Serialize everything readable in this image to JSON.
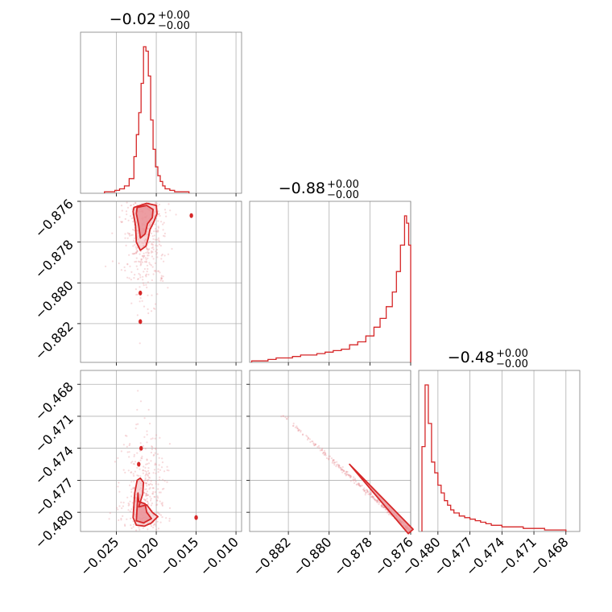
{
  "chart_data": {
    "type": "corner",
    "color": "#d62728",
    "panel_titles": [
      {
        "median": "−0.02",
        "plus": "+0.00",
        "minus": "−0.00"
      },
      {
        "median": "−0.88",
        "plus": "+0.00",
        "minus": "−0.00"
      },
      {
        "median": "−0.48",
        "plus": "+0.00",
        "minus": "−0.00"
      }
    ],
    "axes": [
      {
        "range": [
          -0.0295,
          -0.0093
        ],
        "ticks": [
          -0.025,
          -0.02,
          -0.015,
          -0.01
        ],
        "tick_labels": [
          "−0.025",
          "−0.020",
          "−0.015",
          "−0.010"
        ]
      },
      {
        "range": [
          -0.8839,
          -0.876
        ],
        "ticks": [
          -0.882,
          -0.88,
          -0.878,
          -0.876
        ],
        "tick_labels": [
          "−0.882",
          "−0.880",
          "−0.878",
          "−0.876"
        ]
      },
      {
        "range": [
          -0.4818,
          -0.4667
        ],
        "ticks": [
          -0.48,
          -0.477,
          -0.474,
          -0.471,
          -0.468
        ],
        "tick_labels": [
          "−0.480",
          "−0.477",
          "−0.474",
          "−0.471",
          "−0.468"
        ]
      }
    ],
    "grid": true,
    "histograms": [
      {
        "param": 0,
        "edges": [
          -0.0265,
          -0.0258,
          -0.0252,
          -0.0246,
          -0.024,
          -0.0234,
          -0.0228,
          -0.0225,
          -0.0222,
          -0.0219,
          -0.0216,
          -0.0213,
          -0.021,
          -0.0207,
          -0.0204,
          -0.0201,
          -0.0198,
          -0.0195,
          -0.0192,
          -0.0189,
          -0.0183,
          -0.0177,
          -0.0171,
          -0.0165,
          -0.0159
        ],
        "counts": [
          1,
          1,
          2,
          3,
          5,
          10,
          25,
          40,
          55,
          75,
          100,
          97,
          80,
          50,
          30,
          18,
          12,
          8,
          5,
          3,
          2,
          1,
          1,
          1
        ]
      },
      {
        "param": 1,
        "edges": [
          -0.8838,
          -0.8834,
          -0.883,
          -0.8826,
          -0.8822,
          -0.8818,
          -0.8814,
          -0.881,
          -0.8806,
          -0.8802,
          -0.8798,
          -0.8794,
          -0.879,
          -0.8786,
          -0.8782,
          -0.8778,
          -0.8775,
          -0.8772,
          -0.8769,
          -0.8767,
          -0.8765,
          -0.8763,
          -0.8762,
          -0.8761,
          -0.876
        ],
        "counts": [
          1,
          1,
          2,
          3,
          3,
          4,
          5,
          5,
          6,
          7,
          8,
          9,
          12,
          14,
          18,
          24,
          30,
          38,
          48,
          62,
          80,
          100,
          95,
          80
        ]
      },
      {
        "param": 2,
        "edges": [
          -0.4815,
          -0.4812,
          -0.4809,
          -0.4806,
          -0.4803,
          -0.48,
          -0.4797,
          -0.4794,
          -0.4791,
          -0.4788,
          -0.4785,
          -0.478,
          -0.4775,
          -0.477,
          -0.4765,
          -0.476,
          -0.4755,
          -0.475,
          -0.4745,
          -0.474,
          -0.473,
          -0.472,
          -0.471,
          -0.47,
          -0.468
        ],
        "counts": [
          55,
          95,
          70,
          45,
          38,
          30,
          25,
          20,
          17,
          14,
          12,
          10,
          9,
          8,
          7,
          6,
          5,
          4,
          4,
          3,
          3,
          2,
          2,
          1
        ]
      }
    ],
    "contour_panels": [
      {
        "x_param": 0,
        "y_param": 1,
        "outer": [
          [
            -0.0228,
            -0.8763
          ],
          [
            -0.0212,
            -0.8761
          ],
          [
            -0.02,
            -0.8762
          ],
          [
            -0.0199,
            -0.8766
          ],
          [
            -0.0203,
            -0.877
          ],
          [
            -0.0208,
            -0.8774
          ],
          [
            -0.021,
            -0.8778
          ],
          [
            -0.0213,
            -0.8782
          ],
          [
            -0.022,
            -0.8784
          ],
          [
            -0.0225,
            -0.878
          ],
          [
            -0.0226,
            -0.8772
          ],
          [
            -0.0229,
            -0.8765
          ]
        ],
        "inner": [
          [
            -0.0224,
            -0.8763
          ],
          [
            -0.0212,
            -0.8762
          ],
          [
            -0.0204,
            -0.8764
          ],
          [
            -0.0205,
            -0.8768
          ],
          [
            -0.0211,
            -0.8771
          ],
          [
            -0.0214,
            -0.8776
          ],
          [
            -0.022,
            -0.8778
          ],
          [
            -0.0222,
            -0.8772
          ],
          [
            -0.0225,
            -0.8766
          ]
        ],
        "islands": [
          [
            -0.022,
            -0.8805
          ],
          [
            -0.022,
            -0.8819
          ],
          [
            -0.0156,
            -0.8767
          ]
        ]
      },
      {
        "x_param": 0,
        "y_param": 2,
        "outer": [
          [
            -0.0222,
            -0.4795
          ],
          [
            -0.0212,
            -0.4793
          ],
          [
            -0.0205,
            -0.48
          ],
          [
            -0.0198,
            -0.4804
          ],
          [
            -0.0206,
            -0.481
          ],
          [
            -0.0215,
            -0.4813
          ],
          [
            -0.0225,
            -0.4812
          ],
          [
            -0.0229,
            -0.4805
          ],
          [
            -0.0227,
            -0.4782
          ],
          [
            -0.0224,
            -0.477
          ],
          [
            -0.022,
            -0.4768
          ],
          [
            -0.0216,
            -0.4772
          ],
          [
            -0.0217,
            -0.4783
          ]
        ],
        "inner": [
          [
            -0.0222,
            -0.479
          ],
          [
            -0.0214,
            -0.4792
          ],
          [
            -0.0212,
            -0.48
          ],
          [
            -0.0206,
            -0.4806
          ],
          [
            -0.0216,
            -0.481
          ],
          [
            -0.0225,
            -0.4808
          ],
          [
            -0.0224,
            -0.4795
          ],
          [
            -0.0223,
            -0.4782
          ]
        ],
        "islands": [
          [
            -0.0219,
            -0.474
          ],
          [
            -0.0222,
            -0.4755
          ],
          [
            -0.015,
            -0.4805
          ]
        ]
      },
      {
        "x_param": 1,
        "y_param": 2,
        "line_start": [
          -0.8825,
          -0.4705
        ],
        "line_end": [
          -0.876,
          -0.4818
        ],
        "band_from": [
          -0.879,
          -0.4755
        ]
      }
    ]
  }
}
